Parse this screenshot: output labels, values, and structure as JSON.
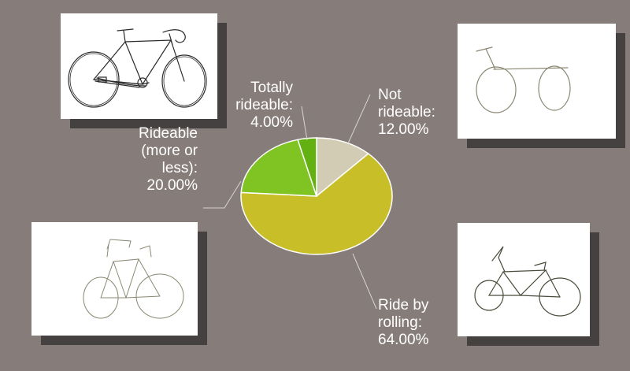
{
  "chart_data": {
    "type": "pie",
    "slices": [
      {
        "label": "Not rideable",
        "value": 12.0,
        "display": "Not\nrideable:\n12.00%",
        "color": "#d1ccb3"
      },
      {
        "label": "Ride by rolling",
        "value": 64.0,
        "display": "Ride by\nrolling:\n64.00%",
        "color": "#c8be27"
      },
      {
        "label": "Rideable (more or less)",
        "value": 20.0,
        "display": "Rideable\n(more or\nless):\n20.00%",
        "color": "#80c424"
      },
      {
        "label": "Totally rideable",
        "value": 4.0,
        "display": "Totally\nrideable:\n4.00%",
        "color": "#62b012"
      }
    ],
    "start": "12 o'clock",
    "direction": "clockwise"
  },
  "colors": {
    "background": "#867d7b",
    "card_shadow": "#454140",
    "slice_border": "#ffffff",
    "leader_line": "#d8d4d0",
    "label_text": "#ffffff"
  },
  "images": [
    {
      "name": "bicycle-drawing-top-left-icon",
      "depicts": "detailed bicycle drawing"
    },
    {
      "name": "bicycle-drawing-top-right-icon",
      "depicts": "bicycle drawing missing parts"
    },
    {
      "name": "bicycle-drawing-bottom-left-icon",
      "depicts": "sketchy bicycle drawing"
    },
    {
      "name": "bicycle-drawing-bottom-right-icon",
      "depicts": "small bicycle drawing"
    }
  ]
}
